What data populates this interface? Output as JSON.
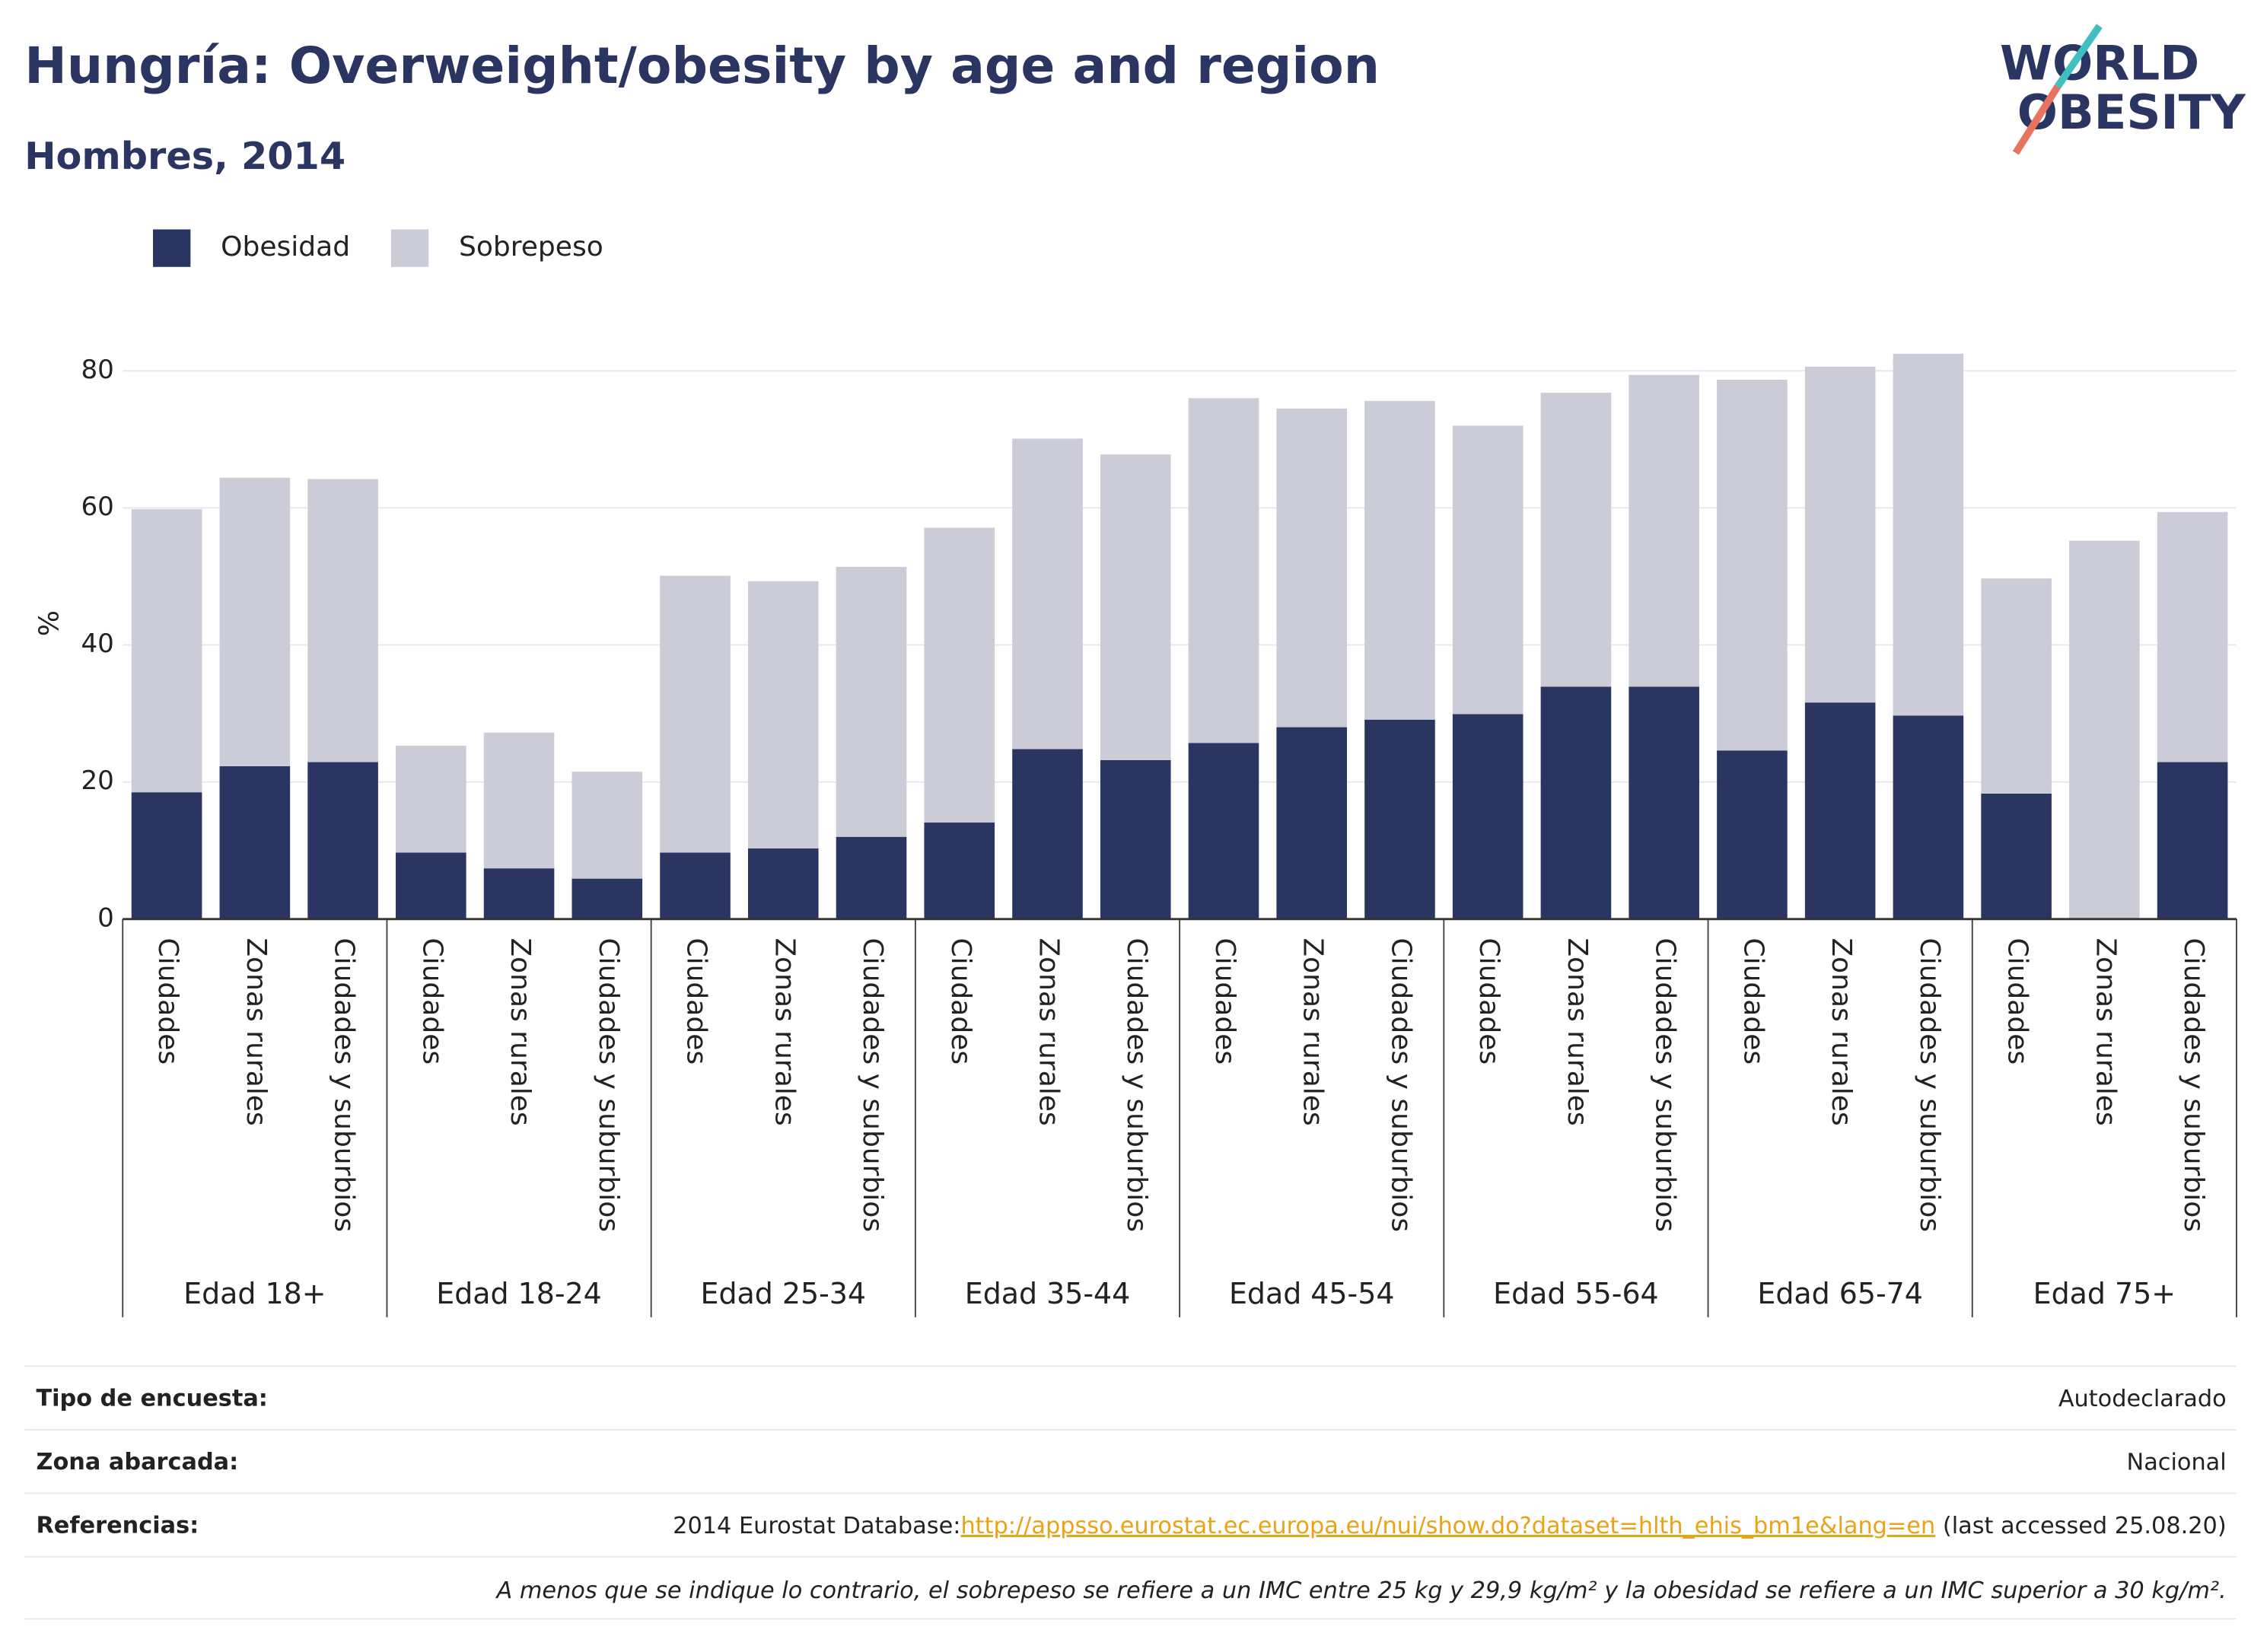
{
  "chart_data": {
    "type": "bar",
    "stacked": true,
    "title": "Hungría: Overweight/obesity by age and region",
    "subtitle": "Hombres, 2014",
    "ylabel": "%",
    "groups": [
      {
        "label": "Edad 18+",
        "categories": [
          "Ciudades",
          "Zonas rurales",
          "Ciudades y suburbios"
        ]
      },
      {
        "label": "Edad 18-24",
        "categories": [
          "Ciudades",
          "Zonas rurales",
          "Ciudades y suburbios"
        ]
      },
      {
        "label": "Edad 25-34",
        "categories": [
          "Ciudades",
          "Zonas rurales",
          "Ciudades y suburbios"
        ]
      },
      {
        "label": "Edad 35-44",
        "categories": [
          "Ciudades",
          "Zonas rurales",
          "Ciudades y suburbios"
        ]
      },
      {
        "label": "Edad 45-54",
        "categories": [
          "Ciudades",
          "Zonas rurales",
          "Ciudades y suburbios"
        ]
      },
      {
        "label": "Edad 55-64",
        "categories": [
          "Ciudades",
          "Zonas rurales",
          "Ciudades y suburbios"
        ]
      },
      {
        "label": "Edad 65-74",
        "categories": [
          "Ciudades",
          "Zonas rurales",
          "Ciudades y suburbios"
        ]
      },
      {
        "label": "Edad 75+",
        "categories": [
          "Ciudades",
          "Zonas rurales",
          "Ciudades y suburbios"
        ]
      }
    ],
    "series": [
      {
        "name": "Obesidad",
        "color": "#2b3562",
        "values": [
          18.5,
          22.3,
          22.9,
          9.7,
          7.4,
          5.9,
          9.7,
          10.3,
          12.0,
          14.1,
          24.8,
          23.2,
          25.7,
          28.0,
          29.1,
          29.9,
          33.9,
          33.9,
          24.6,
          31.6,
          29.7,
          18.3,
          null,
          22.9
        ]
      },
      {
        "name": "Sobrepeso",
        "color": "#cbccd8",
        "values": [
          41.3,
          42.1,
          41.3,
          15.6,
          19.8,
          15.6,
          40.4,
          39.0,
          39.4,
          43.0,
          45.3,
          44.6,
          50.3,
          46.5,
          46.5,
          42.1,
          42.9,
          45.5,
          54.1,
          49.0,
          52.8,
          31.4,
          55.2,
          36.5
        ]
      }
    ],
    "ylim": [
      0,
      88
    ],
    "yticks": [
      0,
      20,
      40,
      60,
      80
    ],
    "grid": true,
    "legend": "top-left"
  },
  "logo": {
    "line1": "WORLD",
    "line2": "OBESITY"
  },
  "footer": {
    "rows": [
      {
        "label": "Tipo de encuesta:",
        "value": "Autodeclarado"
      },
      {
        "label": "Zona abarcada:",
        "value": "Nacional"
      },
      {
        "label": "Referencias:",
        "value": "2014 Eurostat Database:",
        "link": "http://appsso.eurostat.ec.europa.eu/nui/show.do?dataset=hlth_ehis_bm1e&lang=en",
        "suffix": " (last accessed 25.08.20)"
      }
    ],
    "note": "A menos que se indique lo contrario, el sobrepeso se refiere a un IMC entre 25 kg y 29,9 kg/m² y la obesidad se refiere a un IMC superior a 30 kg/m²."
  }
}
